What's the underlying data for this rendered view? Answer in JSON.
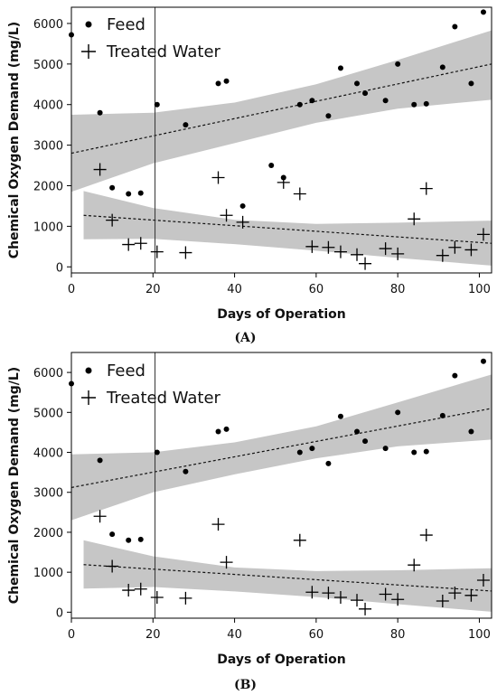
{
  "chart_data": [
    {
      "type": "scatter",
      "panel_label": "(A)",
      "xlabel": "Days of Operation",
      "ylabel": "Chemical Oxygen Demand (mg/L)",
      "xlim": [
        0,
        103
      ],
      "ylim": [
        -150,
        6400
      ],
      "xticks": [
        0,
        20,
        40,
        60,
        80,
        100
      ],
      "yticks": [
        0,
        1000,
        2000,
        3000,
        4000,
        5000,
        6000
      ],
      "vertical_line_x": 20.5,
      "legend": {
        "position": "top-left"
      },
      "series": [
        {
          "name": "Feed",
          "marker": "circle",
          "points": [
            [
              0,
              5720
            ],
            [
              7,
              3800
            ],
            [
              10,
              1950
            ],
            [
              14,
              1800
            ],
            [
              17,
              1820
            ],
            [
              21,
              4000
            ],
            [
              28,
              3500
            ],
            [
              36,
              4520
            ],
            [
              38,
              4580
            ],
            [
              42,
              1500
            ],
            [
              49,
              2500
            ],
            [
              52,
              2200
            ],
            [
              56,
              4000
            ],
            [
              59,
              4100
            ],
            [
              63,
              3720
            ],
            [
              66,
              4900
            ],
            [
              70,
              4520
            ],
            [
              72,
              4280
            ],
            [
              77,
              4100
            ],
            [
              80,
              5000
            ],
            [
              84,
              4000
            ],
            [
              87,
              4020
            ],
            [
              91,
              4920
            ],
            [
              94,
              5920
            ],
            [
              98,
              4520
            ],
            [
              101,
              6280
            ]
          ],
          "trend": [
            [
              0,
              2800
            ],
            [
              103,
              5000
            ]
          ],
          "band_upper": [
            [
              0,
              3750
            ],
            [
              20,
              3800
            ],
            [
              40,
              4050
            ],
            [
              60,
              4500
            ],
            [
              80,
              5100
            ],
            [
              103,
              5830
            ]
          ],
          "band_lower": [
            [
              0,
              1850
            ],
            [
              20,
              2550
            ],
            [
              40,
              3050
            ],
            [
              60,
              3550
            ],
            [
              80,
              3900
            ],
            [
              103,
              4120
            ]
          ]
        },
        {
          "name": "Treated Water",
          "marker": "plus",
          "points": [
            [
              7,
              2400
            ],
            [
              10,
              1150
            ],
            [
              14,
              550
            ],
            [
              17,
              580
            ],
            [
              21,
              370
            ],
            [
              28,
              350
            ],
            [
              36,
              2200
            ],
            [
              38,
              1270
            ],
            [
              42,
              1100
            ],
            [
              52,
              2080
            ],
            [
              56,
              1800
            ],
            [
              59,
              500
            ],
            [
              63,
              480
            ],
            [
              66,
              370
            ],
            [
              70,
              300
            ],
            [
              72,
              80
            ],
            [
              77,
              450
            ],
            [
              80,
              320
            ],
            [
              84,
              1180
            ],
            [
              87,
              1930
            ],
            [
              91,
              280
            ],
            [
              94,
              480
            ],
            [
              98,
              420
            ],
            [
              101,
              800
            ]
          ],
          "trend": [
            [
              3,
              1270
            ],
            [
              103,
              580
            ]
          ],
          "band_upper": [
            [
              3,
              1870
            ],
            [
              20,
              1450
            ],
            [
              40,
              1160
            ],
            [
              60,
              1060
            ],
            [
              80,
              1090
            ],
            [
              103,
              1140
            ]
          ],
          "band_lower": [
            [
              3,
              680
            ],
            [
              20,
              690
            ],
            [
              40,
              560
            ],
            [
              60,
              400
            ],
            [
              80,
              220
            ],
            [
              103,
              30
            ]
          ]
        }
      ]
    },
    {
      "type": "scatter",
      "panel_label": "(B)",
      "xlabel": "Days of Operation",
      "ylabel": "Chemical Oxygen Demand (mg/L)",
      "xlim": [
        0,
        103
      ],
      "ylim": [
        -150,
        6500
      ],
      "xticks": [
        0,
        20,
        40,
        60,
        80,
        100
      ],
      "yticks": [
        0,
        1000,
        2000,
        3000,
        4000,
        5000,
        6000
      ],
      "vertical_line_x": 20.5,
      "legend": {
        "position": "top-left"
      },
      "series": [
        {
          "name": "Feed",
          "marker": "circle",
          "points": [
            [
              0,
              5720
            ],
            [
              7,
              3800
            ],
            [
              10,
              1950
            ],
            [
              14,
              1800
            ],
            [
              17,
              1820
            ],
            [
              21,
              4000
            ],
            [
              28,
              3520
            ],
            [
              36,
              4520
            ],
            [
              38,
              4580
            ],
            [
              56,
              4000
            ],
            [
              59,
              4100
            ],
            [
              63,
              3720
            ],
            [
              66,
              4900
            ],
            [
              70,
              4520
            ],
            [
              72,
              4280
            ],
            [
              77,
              4100
            ],
            [
              80,
              5000
            ],
            [
              84,
              4000
            ],
            [
              87,
              4020
            ],
            [
              91,
              4920
            ],
            [
              94,
              5920
            ],
            [
              98,
              4520
            ],
            [
              101,
              6280
            ]
          ],
          "trend": [
            [
              0,
              3120
            ],
            [
              103,
              5100
            ]
          ],
          "band_upper": [
            [
              0,
              3950
            ],
            [
              20,
              4000
            ],
            [
              40,
              4250
            ],
            [
              60,
              4650
            ],
            [
              80,
              5250
            ],
            [
              103,
              5950
            ]
          ],
          "band_lower": [
            [
              0,
              2300
            ],
            [
              20,
              3000
            ],
            [
              40,
              3450
            ],
            [
              60,
              3850
            ],
            [
              80,
              4150
            ],
            [
              103,
              4320
            ]
          ]
        },
        {
          "name": "Treated Water",
          "marker": "plus",
          "points": [
            [
              7,
              2400
            ],
            [
              10,
              1150
            ],
            [
              14,
              550
            ],
            [
              17,
              580
            ],
            [
              21,
              370
            ],
            [
              28,
              350
            ],
            [
              36,
              2200
            ],
            [
              38,
              1250
            ],
            [
              56,
              1800
            ],
            [
              59,
              500
            ],
            [
              63,
              480
            ],
            [
              66,
              370
            ],
            [
              70,
              300
            ],
            [
              72,
              80
            ],
            [
              77,
              450
            ],
            [
              80,
              320
            ],
            [
              84,
              1180
            ],
            [
              87,
              1930
            ],
            [
              91,
              280
            ],
            [
              94,
              480
            ],
            [
              98,
              420
            ],
            [
              101,
              800
            ]
          ],
          "trend": [
            [
              3,
              1190
            ],
            [
              103,
              530
            ]
          ],
          "band_upper": [
            [
              3,
              1800
            ],
            [
              20,
              1400
            ],
            [
              40,
              1120
            ],
            [
              60,
              1030
            ],
            [
              80,
              1050
            ],
            [
              103,
              1100
            ]
          ],
          "band_lower": [
            [
              3,
              590
            ],
            [
              20,
              630
            ],
            [
              40,
              520
            ],
            [
              60,
              380
            ],
            [
              80,
              200
            ],
            [
              103,
              10
            ]
          ]
        }
      ]
    }
  ]
}
